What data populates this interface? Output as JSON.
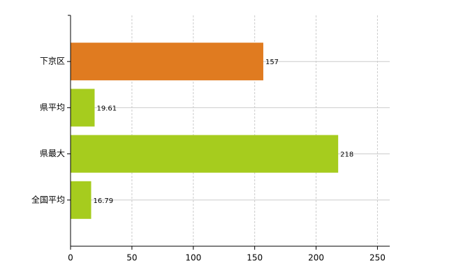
{
  "chart_data": {
    "type": "barh",
    "categories": [
      "下京区",
      "県平均",
      "県最大",
      "全国平均"
    ],
    "values": [
      157,
      19.61,
      218,
      16.79
    ],
    "colors": [
      "#e07b20",
      "#a6cc1e",
      "#a6cc1e",
      "#a6cc1e"
    ],
    "xlim": [
      0,
      260
    ],
    "xticks": [
      0,
      50,
      100,
      150,
      200,
      250
    ],
    "grid": true
  }
}
